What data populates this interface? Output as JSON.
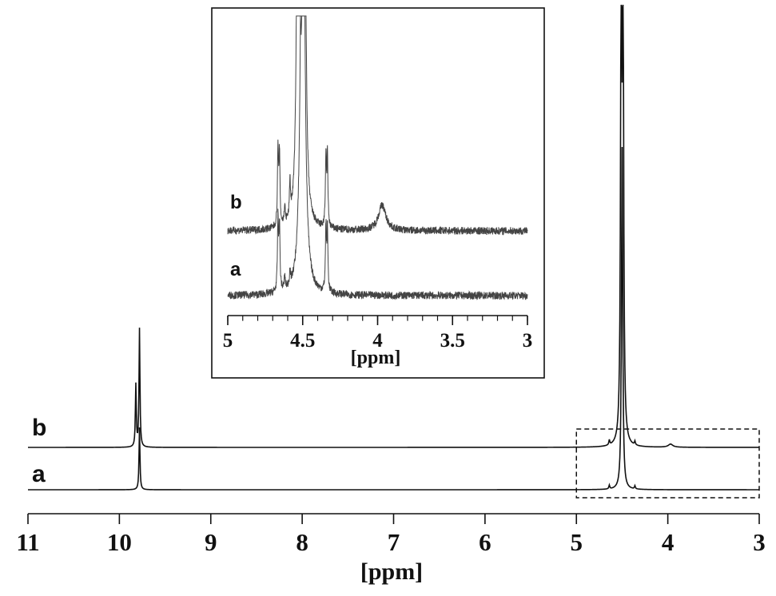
{
  "chart_data": [
    {
      "type": "line",
      "title": "",
      "xlabel": "[ppm]",
      "ylabel": "",
      "xlim": [
        11,
        3
      ],
      "x_reversed": true,
      "xticks": [
        "11",
        "10",
        "9",
        "8",
        "7",
        "6",
        "5",
        "4",
        "3"
      ],
      "grid": false,
      "legend": "none",
      "series": [
        {
          "name": "a",
          "peaks": [
            {
              "ppm": 9.78,
              "height": 1.0,
              "width": 0.006
            },
            {
              "ppm": 4.5,
              "height": 5.5,
              "width": 0.008
            },
            {
              "ppm": 4.64,
              "height": 0.06,
              "width": 0.006
            },
            {
              "ppm": 4.36,
              "height": 0.05,
              "width": 0.006
            }
          ]
        },
        {
          "name": "b",
          "peaks": [
            {
              "ppm": 9.82,
              "height": 1.0,
              "width": 0.006
            },
            {
              "ppm": 9.78,
              "height": 1.9,
              "width": 0.006
            },
            {
              "ppm": 4.51,
              "height": 7.5,
              "width": 0.008
            },
            {
              "ppm": 4.49,
              "height": 7.5,
              "width": 0.008
            },
            {
              "ppm": 4.64,
              "height": 0.08,
              "width": 0.006
            },
            {
              "ppm": 4.36,
              "height": 0.06,
              "width": 0.006
            },
            {
              "ppm": 3.97,
              "height": 0.05,
              "width": 0.03
            }
          ]
        }
      ],
      "highlight_region": {
        "x": [
          5,
          3
        ]
      }
    },
    {
      "type": "line",
      "title": "",
      "xlabel": "[ppm]",
      "ylabel": "",
      "xlim": [
        5,
        3
      ],
      "x_reversed": true,
      "xticks": [
        "5",
        "4.5",
        "4",
        "3.5",
        "3"
      ],
      "grid": false,
      "legend": "none",
      "series": [
        {
          "name": "a",
          "peaks": [
            {
              "ppm": 4.665,
              "height": 28,
              "width": 0.004
            },
            {
              "ppm": 4.655,
              "height": 26,
              "width": 0.004
            },
            {
              "ppm": 4.62,
              "height": 5,
              "width": 0.004
            },
            {
              "ppm": 4.585,
              "height": 5,
              "width": 0.004
            },
            {
              "ppm": 4.5,
              "height": 280,
              "width": 0.012
            },
            {
              "ppm": 4.345,
              "height": 25,
              "width": 0.004
            },
            {
              "ppm": 4.335,
              "height": 24,
              "width": 0.004
            }
          ]
        },
        {
          "name": "b",
          "peaks": [
            {
              "ppm": 4.665,
              "height": 30,
              "width": 0.004
            },
            {
              "ppm": 4.655,
              "height": 28,
              "width": 0.004
            },
            {
              "ppm": 4.62,
              "height": 7,
              "width": 0.004
            },
            {
              "ppm": 4.585,
              "height": 14,
              "width": 0.004
            },
            {
              "ppm": 4.53,
              "height": 280,
              "width": 0.008
            },
            {
              "ppm": 4.49,
              "height": 280,
              "width": 0.008
            },
            {
              "ppm": 4.345,
              "height": 28,
              "width": 0.004
            },
            {
              "ppm": 4.335,
              "height": 27,
              "width": 0.004
            },
            {
              "ppm": 3.97,
              "height": 10,
              "width": 0.03
            }
          ]
        }
      ]
    }
  ]
}
